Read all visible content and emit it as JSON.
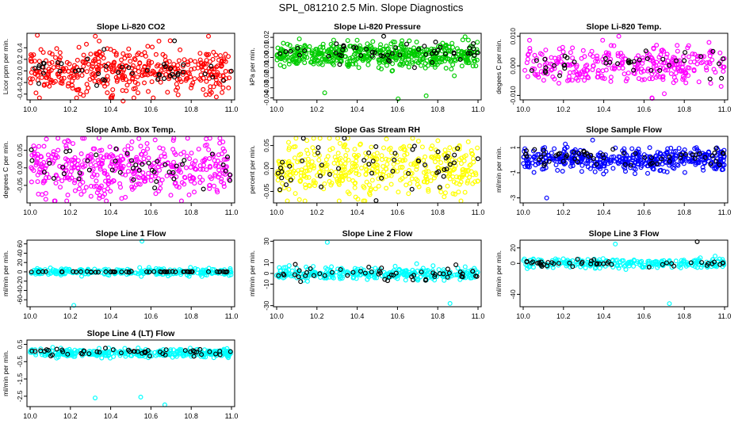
{
  "figure": {
    "title": "SPL_081210  2.5 Min. Slope Diagnostics"
  },
  "chart_data": [
    {
      "type": "scatter",
      "title": "Slope Li-820 CO2",
      "ylabel": "Licor ppm per min.",
      "xlim": [
        10.0,
        11.0
      ],
      "ylim": [
        -0.5,
        0.65
      ],
      "xticks": [
        "10.0",
        "10.2",
        "10.4",
        "10.6",
        "10.8",
        "11.0"
      ],
      "yticks": [
        "-0.4",
        "-0.2",
        "0.0",
        "0.2",
        "0.4"
      ],
      "ytick_values": [
        -0.4,
        -0.2,
        0.0,
        0.2,
        0.4
      ],
      "series": [
        {
          "color": "#ff0000",
          "count": 420,
          "center": 0.0,
          "spread": 0.22,
          "outliers": [
            0.6,
            -0.52
          ]
        },
        {
          "color": "#000000",
          "count": 45,
          "center": 0.0,
          "spread": 0.12,
          "outliers": [
            0.52
          ]
        }
      ]
    },
    {
      "type": "scatter",
      "title": "Slope Li-820 Pressure",
      "ylabel": "kPa per min.",
      "xlim": [
        10.0,
        11.0
      ],
      "ylim": [
        -0.042,
        0.024
      ],
      "xticks": [
        "10.0",
        "10.2",
        "10.4",
        "10.6",
        "10.8",
        "11.0"
      ],
      "yticks": [
        "-0.04",
        "-0.03",
        "-0.02",
        "-0.01",
        "0.00",
        "0.01",
        "0.02"
      ],
      "ytick_values": [
        -0.04,
        -0.03,
        -0.02,
        -0.01,
        0.0,
        0.01,
        0.02
      ],
      "series": [
        {
          "color": "#00cc00",
          "count": 520,
          "center": 0.002,
          "spread": 0.006,
          "outliers": [
            -0.038,
            -0.041,
            -0.035
          ]
        },
        {
          "color": "#000000",
          "count": 55,
          "center": 0.006,
          "spread": 0.006,
          "outliers": []
        }
      ]
    },
    {
      "type": "scatter",
      "title": "Slope Li-820 Temp.",
      "ylabel": "degees C per min.",
      "xlim": [
        10.0,
        11.0
      ],
      "ylim": [
        -0.0115,
        0.011
      ],
      "xticks": [
        "10.0",
        "10.2",
        "10.4",
        "10.6",
        "10.8",
        "11.0"
      ],
      "yticks": [
        "-0.010",
        "0.000",
        "0.010"
      ],
      "ytick_values": [
        -0.01,
        0.0,
        0.01
      ],
      "series": [
        {
          "color": "#ff00ff",
          "count": 300,
          "center": 0.0,
          "spread": 0.003,
          "outliers": [
            0.01,
            -0.011
          ]
        },
        {
          "color": "#000000",
          "count": 40,
          "center": 0.0,
          "spread": 0.0025,
          "outliers": []
        }
      ]
    },
    {
      "type": "scatter",
      "title": "Slope Amb. Box Temp.",
      "ylabel": "degrees C per min.",
      "xlim": [
        10.0,
        11.0
      ],
      "ylim": [
        -0.1,
        0.09
      ],
      "xticks": [
        "10.0",
        "10.2",
        "10.4",
        "10.6",
        "10.8",
        "11.0"
      ],
      "yticks": [
        "-0.05",
        "0.00",
        "0.05"
      ],
      "ytick_values": [
        -0.05,
        0.0,
        0.05
      ],
      "series": [
        {
          "color": "#ff00ff",
          "count": 420,
          "center": 0.0,
          "spread": 0.04,
          "outliers": [
            0.085
          ]
        },
        {
          "color": "#000000",
          "count": 45,
          "center": 0.0,
          "spread": 0.03,
          "outliers": []
        }
      ]
    },
    {
      "type": "scatter",
      "title": "Slope Gas Stream RH",
      "ylabel": "percent per min.",
      "xlim": [
        10.0,
        11.0
      ],
      "ylim": [
        -0.075,
        0.07
      ],
      "xticks": [
        "10.0",
        "10.2",
        "10.4",
        "10.6",
        "10.8",
        "11.0"
      ],
      "yticks": [
        "-0.05",
        "0.00",
        "0.05"
      ],
      "ytick_values": [
        -0.05,
        0.0,
        0.05
      ],
      "series": [
        {
          "color": "#ffff00",
          "count": 420,
          "center": 0.0,
          "spread": 0.03,
          "outliers": [
            -0.068
          ]
        },
        {
          "color": "#000000",
          "count": 50,
          "center": 0.0,
          "spread": 0.025,
          "outliers": [
            -0.07
          ]
        }
      ]
    },
    {
      "type": "scatter",
      "title": "Slope Sample Flow",
      "ylabel": "ml/min per min.",
      "xlim": [
        10.0,
        11.0
      ],
      "ylim": [
        -3.4,
        1.9
      ],
      "xticks": [
        "10.0",
        "10.2",
        "10.4",
        "10.6",
        "10.8",
        "11.0"
      ],
      "yticks": [
        "-3",
        "-1",
        "1"
      ],
      "ytick_values": [
        -3,
        -1,
        1
      ],
      "series": [
        {
          "color": "#0000ff",
          "count": 430,
          "center": 0.0,
          "spread": 0.45,
          "outliers": [
            -3.0,
            1.6
          ]
        },
        {
          "color": "#000000",
          "count": 60,
          "center": 0.3,
          "spread": 0.4,
          "outliers": []
        }
      ]
    },
    {
      "type": "scatter",
      "title": "Slope Line 1 Flow",
      "ylabel": "ml/min per min.",
      "xlim": [
        10.0,
        11.0
      ],
      "ylim": [
        -75,
        68
      ],
      "xticks": [
        "10.0",
        "10.2",
        "10.4",
        "10.6",
        "10.8",
        "11.0"
      ],
      "yticks": [
        "-60",
        "-40",
        "-20",
        "0",
        "20",
        "40",
        "60"
      ],
      "ytick_values": [
        -60,
        -40,
        -20,
        0,
        20,
        40,
        60
      ],
      "series": [
        {
          "color": "#00ffff",
          "count": 260,
          "center": 0.0,
          "spread": 4,
          "outliers": [
            66,
            -72
          ]
        },
        {
          "color": "#000000",
          "count": 55,
          "center": 0.0,
          "spread": 0.5,
          "outliers": []
        }
      ]
    },
    {
      "type": "scatter",
      "title": "Slope Line 2 Flow",
      "ylabel": "ml/min per min.",
      "xlim": [
        10.0,
        11.0
      ],
      "ylim": [
        -31,
        31
      ],
      "xticks": [
        "10.0",
        "10.2",
        "10.4",
        "10.6",
        "10.8",
        "11.0"
      ],
      "yticks": [
        "-30",
        "-10",
        "0",
        "10",
        "30"
      ],
      "ytick_values": [
        -30,
        -10,
        0,
        10,
        30
      ],
      "series": [
        {
          "color": "#00ffff",
          "count": 300,
          "center": 0.0,
          "spread": 3,
          "outliers": [
            29,
            -28
          ]
        },
        {
          "color": "#000000",
          "count": 55,
          "center": 0.0,
          "spread": 3,
          "outliers": []
        }
      ]
    },
    {
      "type": "scatter",
      "title": "Slope Line 3 Flow",
      "ylabel": "ml/min per min.",
      "xlim": [
        10.0,
        11.0
      ],
      "ylim": [
        -56,
        30
      ],
      "xticks": [
        "10.0",
        "10.2",
        "10.4",
        "10.6",
        "10.8",
        "11.0"
      ],
      "yticks": [
        "-40",
        "0",
        "20"
      ],
      "ytick_values": [
        -40,
        0,
        20
      ],
      "series": [
        {
          "color": "#00ffff",
          "count": 260,
          "center": 0.0,
          "spread": 3,
          "outliers": [
            -52,
            25
          ]
        },
        {
          "color": "#000000",
          "count": 45,
          "center": 0.0,
          "spread": 2,
          "outliers": [
            28
          ]
        }
      ]
    },
    {
      "type": "scatter",
      "title": "Slope Line 4 (LT) Flow",
      "ylabel": "ml/min per min.",
      "xlim": [
        10.0,
        11.0
      ],
      "ylim": [
        -3.1,
        0.75
      ],
      "xticks": [
        "10.0",
        "10.2",
        "10.4",
        "10.6",
        "10.8",
        "11.0"
      ],
      "yticks": [
        "-2.5",
        "-1.5",
        "-0.5",
        "0.5"
      ],
      "ytick_values": [
        -2.5,
        -1.5,
        -0.5,
        0.5
      ],
      "series": [
        {
          "color": "#00ffff",
          "count": 320,
          "center": 0.0,
          "spread": 0.12,
          "outliers": [
            -2.6,
            -2.55,
            -3.0
          ]
        },
        {
          "color": "#000000",
          "count": 50,
          "center": 0.05,
          "spread": 0.1,
          "outliers": []
        }
      ]
    }
  ]
}
